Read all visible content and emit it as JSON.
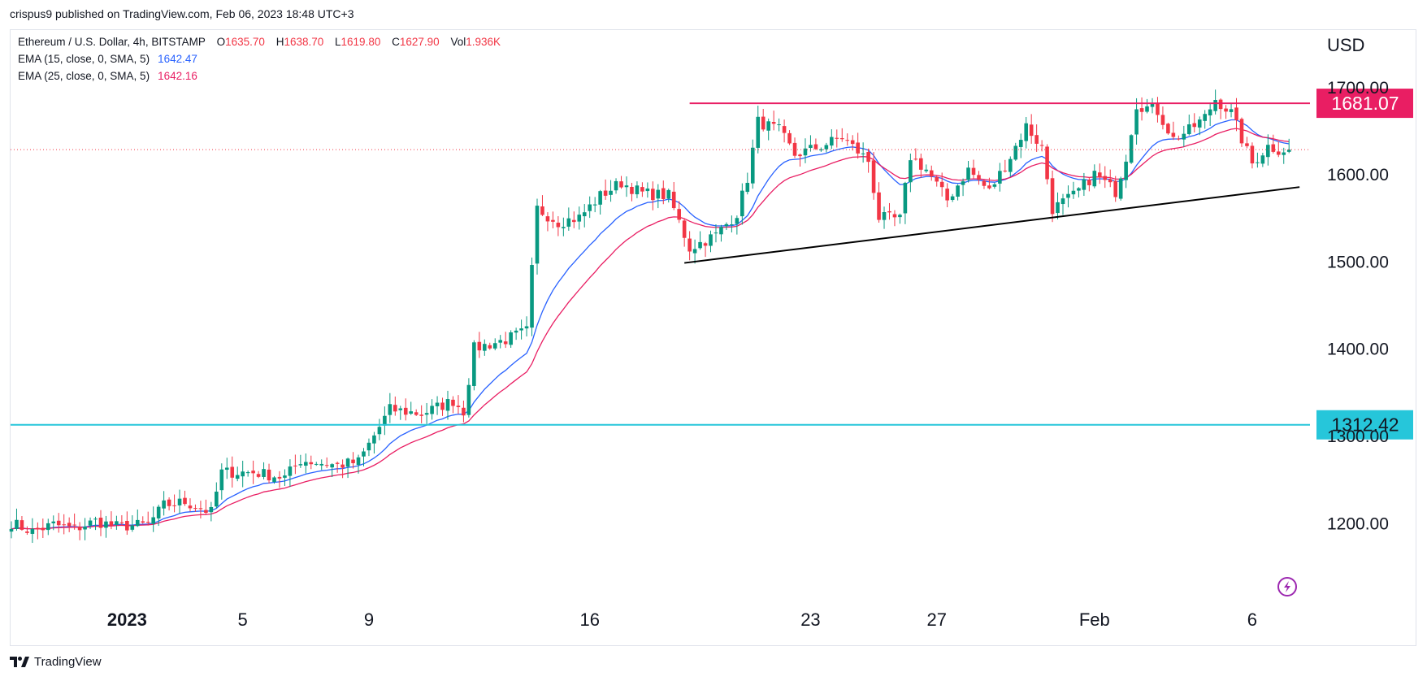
{
  "header": {
    "published": "crispus9 published on TradingView.com, Feb 06, 2023 18:48 UTC+3"
  },
  "legend": {
    "symbol": "Ethereum / U.S. Dollar, 4h, BITSTAMP",
    "o_label": "O",
    "o": "1635.70",
    "h_label": "H",
    "h": "1638.70",
    "l_label": "L",
    "l": "1619.80",
    "c_label": "C",
    "c": "1627.90",
    "vol_label": "Vol",
    "vol": "1.936K",
    "ema1_label": "EMA (15, close, 0, SMA, 5)",
    "ema1": "1642.47",
    "ema2_label": "EMA (25, close, 0, SMA, 5)",
    "ema2": "1642.16"
  },
  "footer": {
    "brand": "TradingView",
    "brand_icon": "tradingview-logo-icon"
  },
  "colors": {
    "up": "#089981",
    "down": "#f23645",
    "ema15": "#2962ff",
    "ema25": "#e91e63",
    "resistance": "#e91e63",
    "support_level": "#26c6da",
    "trendline": "#000000",
    "grid_text": "#131722",
    "last_price": "#f23645"
  },
  "chart_data": {
    "type": "candlestick",
    "title": "Ethereum / U.S. Dollar, 4h, BITSTAMP",
    "currency": "USD",
    "ylim": [
      1110,
      1765
    ],
    "yticks": [
      "1200.00",
      "1300.00",
      "1400.00",
      "1500.00",
      "1600.00",
      "1700.00"
    ],
    "xticks": [
      {
        "label": "2023",
        "bar": 22,
        "bold": true
      },
      {
        "label": "5",
        "bar": 44
      },
      {
        "label": "9",
        "bar": 68
      },
      {
        "label": "16",
        "bar": 110
      },
      {
        "label": "23",
        "bar": 152
      },
      {
        "label": "27",
        "bar": 176
      },
      {
        "label": "Feb",
        "bar": 206
      },
      {
        "label": "6",
        "bar": 236
      }
    ],
    "bar_count": 244,
    "last_price": 1627.9,
    "levels": [
      {
        "name": "resistance",
        "value": 1681.07,
        "label": "1681.07",
        "color": "#e91e63",
        "from_bar": 129
      },
      {
        "name": "support",
        "value": 1312.42,
        "label": "1312.42",
        "color": "#26c6da",
        "from_bar": 0
      }
    ],
    "trendline": {
      "from": {
        "bar": 128,
        "value": 1498
      },
      "to": {
        "bar": 245,
        "value": 1585
      }
    },
    "anchors": [
      {
        "bar": 0,
        "value": 1200
      },
      {
        "bar": 4,
        "value": 1190
      },
      {
        "bar": 8,
        "value": 1198
      },
      {
        "bar": 12,
        "value": 1193
      },
      {
        "bar": 16,
        "value": 1202
      },
      {
        "bar": 20,
        "value": 1196
      },
      {
        "bar": 26,
        "value": 1198
      },
      {
        "bar": 29,
        "value": 1220
      },
      {
        "bar": 33,
        "value": 1224
      },
      {
        "bar": 38,
        "value": 1212
      },
      {
        "bar": 40,
        "value": 1258
      },
      {
        "bar": 46,
        "value": 1258
      },
      {
        "bar": 52,
        "value": 1252
      },
      {
        "bar": 55,
        "value": 1272
      },
      {
        "bar": 62,
        "value": 1266
      },
      {
        "bar": 66,
        "value": 1270
      },
      {
        "bar": 69,
        "value": 1300
      },
      {
        "bar": 72,
        "value": 1330
      },
      {
        "bar": 78,
        "value": 1325
      },
      {
        "bar": 84,
        "value": 1340
      },
      {
        "bar": 86,
        "value": 1328
      },
      {
        "bar": 88,
        "value": 1400
      },
      {
        "bar": 94,
        "value": 1410
      },
      {
        "bar": 98,
        "value": 1420
      },
      {
        "bar": 100,
        "value": 1560
      },
      {
        "bar": 104,
        "value": 1545
      },
      {
        "bar": 108,
        "value": 1550
      },
      {
        "bar": 112,
        "value": 1575
      },
      {
        "bar": 116,
        "value": 1590
      },
      {
        "bar": 120,
        "value": 1578
      },
      {
        "bar": 125,
        "value": 1575
      },
      {
        "bar": 129,
        "value": 1515
      },
      {
        "bar": 134,
        "value": 1530
      },
      {
        "bar": 138,
        "value": 1555
      },
      {
        "bar": 140,
        "value": 1595
      },
      {
        "bar": 142,
        "value": 1660
      },
      {
        "bar": 146,
        "value": 1650
      },
      {
        "bar": 149,
        "value": 1622
      },
      {
        "bar": 154,
        "value": 1632
      },
      {
        "bar": 158,
        "value": 1642
      },
      {
        "bar": 163,
        "value": 1615
      },
      {
        "bar": 165,
        "value": 1550
      },
      {
        "bar": 169,
        "value": 1548
      },
      {
        "bar": 171,
        "value": 1620
      },
      {
        "bar": 174,
        "value": 1605
      },
      {
        "bar": 178,
        "value": 1570
      },
      {
        "bar": 182,
        "value": 1605
      },
      {
        "bar": 186,
        "value": 1580
      },
      {
        "bar": 190,
        "value": 1620
      },
      {
        "bar": 193,
        "value": 1655
      },
      {
        "bar": 196,
        "value": 1630
      },
      {
        "bar": 198,
        "value": 1560
      },
      {
        "bar": 202,
        "value": 1575
      },
      {
        "bar": 206,
        "value": 1600
      },
      {
        "bar": 210,
        "value": 1580
      },
      {
        "bar": 212,
        "value": 1620
      },
      {
        "bar": 214,
        "value": 1680
      },
      {
        "bar": 218,
        "value": 1672
      },
      {
        "bar": 221,
        "value": 1640
      },
      {
        "bar": 224,
        "value": 1650
      },
      {
        "bar": 227,
        "value": 1665
      },
      {
        "bar": 229,
        "value": 1686
      },
      {
        "bar": 232,
        "value": 1670
      },
      {
        "bar": 234,
        "value": 1640
      },
      {
        "bar": 236,
        "value": 1612
      },
      {
        "bar": 239,
        "value": 1632
      },
      {
        "bar": 241,
        "value": 1627.9
      }
    ]
  }
}
